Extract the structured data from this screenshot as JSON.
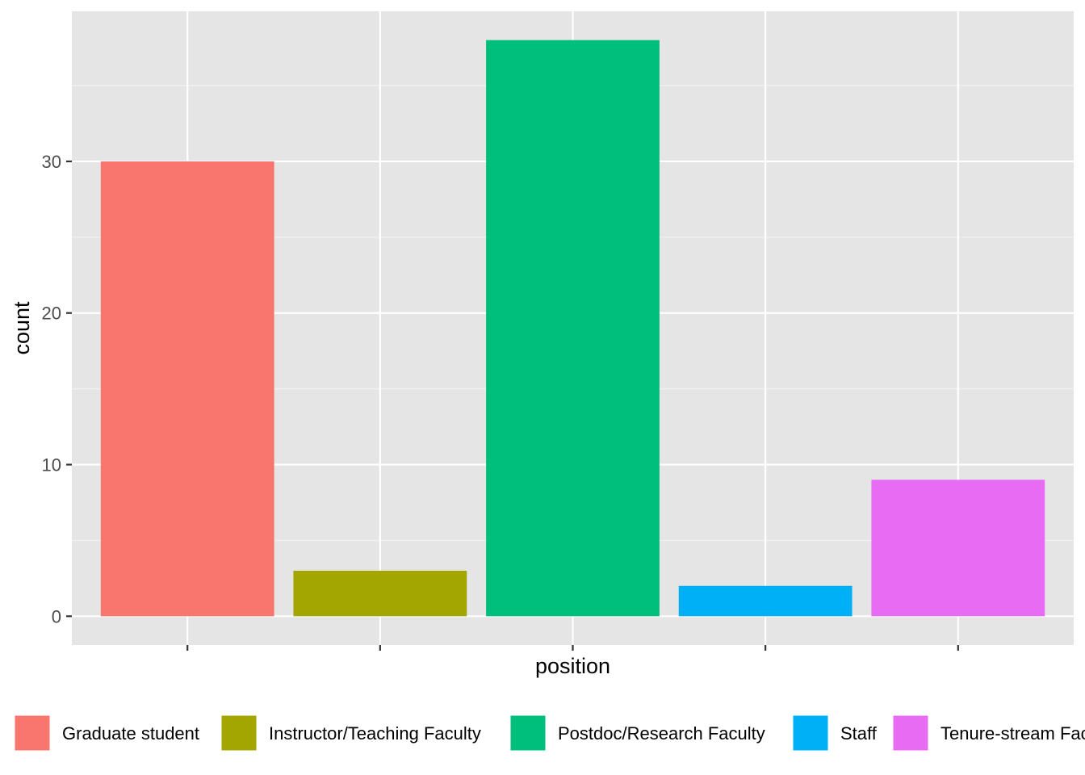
{
  "chart_data": {
    "type": "bar",
    "xlabel": "position",
    "ylabel": "count",
    "categories": [
      "Graduate student",
      "Instructor/Teaching Faculty",
      "Postdoc/Research Faculty",
      "Staff",
      "Tenure-stream Faculty"
    ],
    "values": [
      30,
      3,
      38,
      2,
      9
    ],
    "colors": [
      "#F8766D",
      "#A3A500",
      "#00BF7D",
      "#00B0F6",
      "#E76BF3"
    ],
    "y_ticks": [
      0,
      10,
      20,
      30
    ],
    "y_tick_labels": [
      "0",
      "10",
      "20",
      "30"
    ],
    "ylim": [
      -1.9,
      39.9
    ],
    "x_tick_labels_shown": false,
    "panel_background": "#E5E5E5",
    "grid": true,
    "legend": {
      "position": "bottom",
      "entries": [
        "Graduate student",
        "Instructor/Teaching Faculty",
        "Postdoc/Research Faculty",
        "Staff",
        "Tenure-stream Faculty"
      ]
    }
  }
}
